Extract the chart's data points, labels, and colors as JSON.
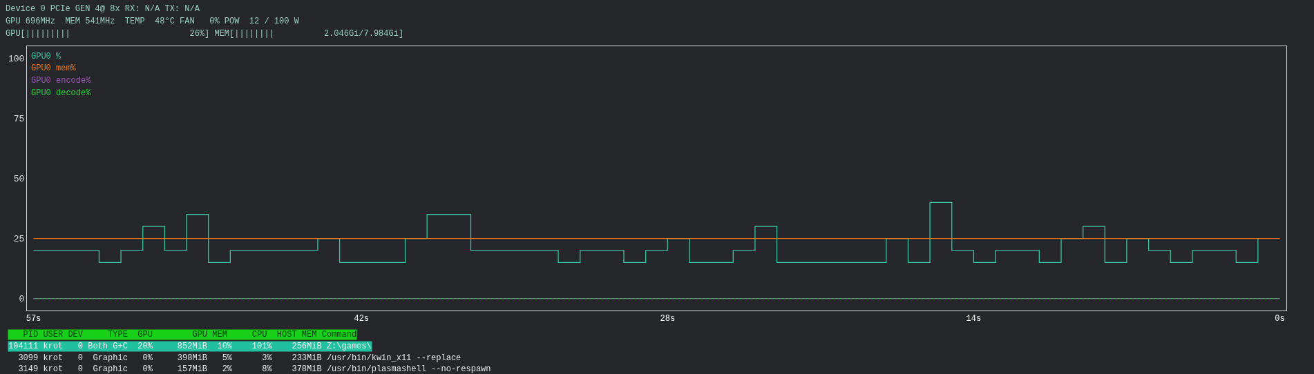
{
  "chart_data": {
    "type": "step",
    "annotations": [
      "Device 0 PCIe GEN 4@ 8x RX: N/A TX: N/A",
      "GPU 696MHz  MEM 541MHz  TEMP  48°C FAN   0% POW  12 / 100 W",
      "GPU[|||||||||                        26%] MEM[||||||||          2.046Gi/7.984Gi]",
      "   PID USER DEV     TYPE  GPU        GPU MEM     CPU  HOST MEM Command",
      "104111 krot   0 Both G+C  20%     852MiB  10%    101%    256MiB Z:\\games\\",
      "  3099 krot   0  Graphic   0%     398MiB   5%      3%    233MiB /usr/bin/kwin_x11 --replace",
      "  3149 krot   0  Graphic   0%     157MiB   2%      8%    378MiB /usr/bin/plasmashell --no-respawn"
    ],
    "x": [
      57,
      56,
      55,
      54,
      53,
      52,
      51,
      50,
      49,
      48,
      47,
      46,
      45,
      44,
      43,
      42,
      41,
      40,
      39,
      38,
      37,
      36,
      35,
      34,
      33,
      32,
      31,
      30,
      29,
      28,
      27,
      26,
      25,
      24,
      23,
      22,
      21,
      20,
      19,
      18,
      17,
      16,
      15,
      14,
      13,
      12,
      11,
      10,
      9,
      8,
      7,
      6,
      5,
      4,
      3,
      2,
      1,
      0
    ],
    "series": [
      {
        "name": "GPU0 %",
        "color": "#3cc4a4",
        "values": [
          20,
          20,
          20,
          15,
          20,
          30,
          20,
          35,
          15,
          20,
          20,
          20,
          20,
          25,
          15,
          15,
          15,
          25,
          35,
          35,
          20,
          20,
          20,
          20,
          15,
          20,
          20,
          15,
          20,
          25,
          15,
          15,
          20,
          30,
          15,
          15,
          15,
          15,
          15,
          25,
          15,
          40,
          20,
          15,
          20,
          20,
          15,
          25,
          30,
          15,
          25,
          20,
          15,
          20,
          20,
          15,
          25,
          null
        ]
      },
      {
        "name": "GPU0 mem%",
        "color": "#e5771e",
        "type": "line",
        "values": [
          25,
          25,
          25,
          25,
          25,
          25,
          25,
          25,
          25,
          25,
          25,
          25,
          25,
          25,
          25,
          25,
          25,
          25,
          25,
          25,
          25,
          25,
          25,
          25,
          25,
          25,
          25,
          25,
          25,
          25,
          25,
          25,
          25,
          25,
          25,
          25,
          25,
          25,
          25,
          25,
          25,
          25,
          25,
          25,
          25,
          25,
          25,
          25,
          25,
          25,
          25,
          25,
          25,
          25,
          25,
          25,
          25,
          25
        ]
      },
      {
        "name": "GPU0 encode%",
        "color": "#9b59b6",
        "type": "line",
        "values": [
          0,
          0,
          0,
          0,
          0,
          0,
          0,
          0,
          0,
          0,
          0,
          0,
          0,
          0,
          0,
          0,
          0,
          0,
          0,
          0,
          0,
          0,
          0,
          0,
          0,
          0,
          0,
          0,
          0,
          0,
          0,
          0,
          0,
          0,
          0,
          0,
          0,
          0,
          0,
          0,
          0,
          0,
          0,
          0,
          0,
          0,
          0,
          0,
          0,
          0,
          0,
          0,
          0,
          0,
          0,
          0,
          0,
          0
        ],
        "line_style": "dashed"
      },
      {
        "name": "GPU0 decode%",
        "color": "#2ecc40",
        "type": "line",
        "values": [
          0,
          0,
          0,
          0,
          0,
          0,
          0,
          0,
          0,
          0,
          0,
          0,
          0,
          0,
          0,
          0,
          0,
          0,
          0,
          0,
          0,
          0,
          0,
          0,
          0,
          0,
          0,
          0,
          0,
          0,
          0,
          0,
          0,
          0,
          0,
          0,
          0,
          0,
          0,
          0,
          0,
          0,
          0,
          0,
          0,
          0,
          0,
          0,
          0,
          0,
          0,
          0,
          0,
          0,
          0,
          0,
          0,
          0
        ]
      }
    ],
    "xlim": [
      57.3,
      -0.3
    ],
    "xticks": [
      {
        "value": 57,
        "label": "57s"
      },
      {
        "value": 42,
        "label": "42s"
      },
      {
        "value": 28,
        "label": "28s"
      },
      {
        "value": 14,
        "label": "14s"
      },
      {
        "value": 0,
        "label": "0s"
      }
    ],
    "ylim": [
      -5,
      105
    ],
    "yticks": [
      0,
      25,
      50,
      75,
      100
    ],
    "legend": "top left",
    "grid": false,
    "marker": "none",
    "line_style": "solid"
  }
}
